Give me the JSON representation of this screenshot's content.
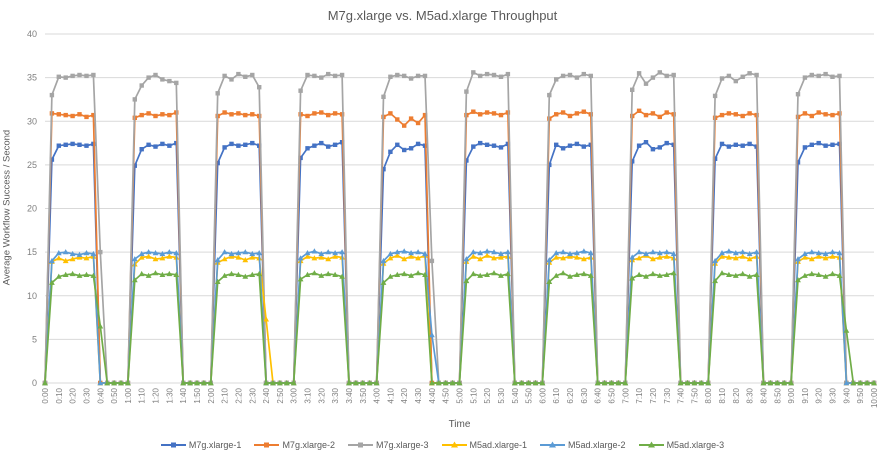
{
  "chart_data": {
    "type": "line",
    "title": "M7g.xlarge vs. M5ad.xlarge Throughput",
    "xlabel": "Time",
    "ylabel": "Average Workflow Success / Second",
    "ylim": [
      0,
      40
    ],
    "ytick_step": 5,
    "grid": true,
    "legend_position": "bottom",
    "x_tick_every_n_points": 2,
    "colors": {
      "gridline": "#d9d9d9",
      "axis_text": "#7f7f7f",
      "title_text": "#595959"
    },
    "x": [
      "0:00",
      "0:05",
      "0:10",
      "0:15",
      "0:20",
      "0:25",
      "0:30",
      "0:35",
      "0:40",
      "0:45",
      "0:50",
      "0:55",
      "1:00",
      "1:05",
      "1:10",
      "1:15",
      "1:20",
      "1:25",
      "1:30",
      "1:35",
      "1:40",
      "1:45",
      "1:50",
      "1:55",
      "2:00",
      "2:05",
      "2:10",
      "2:15",
      "2:20",
      "2:25",
      "2:30",
      "2:35",
      "2:40",
      "2:45",
      "2:50",
      "2:55",
      "3:00",
      "3:05",
      "3:10",
      "3:15",
      "3:20",
      "3:25",
      "3:30",
      "3:35",
      "3:40",
      "3:45",
      "3:50",
      "3:55",
      "4:00",
      "4:05",
      "4:10",
      "4:15",
      "4:20",
      "4:25",
      "4:30",
      "4:35",
      "4:40",
      "4:45",
      "4:50",
      "4:55",
      "5:00",
      "5:05",
      "5:10",
      "5:15",
      "5:20",
      "5:25",
      "5:30",
      "5:35",
      "5:40",
      "5:45",
      "5:50",
      "5:55",
      "6:00",
      "6:05",
      "6:10",
      "6:15",
      "6:20",
      "6:25",
      "6:30",
      "6:35",
      "6:40",
      "6:45",
      "6:50",
      "6:55",
      "7:00",
      "7:05",
      "7:10",
      "7:15",
      "7:20",
      "7:25",
      "7:30",
      "7:35",
      "7:40",
      "7:45",
      "7:50",
      "7:55",
      "8:00",
      "8:05",
      "8:10",
      "8:15",
      "8:20",
      "8:25",
      "8:30",
      "8:35",
      "8:40",
      "8:45",
      "8:50",
      "8:55",
      "9:00",
      "9:05",
      "9:10",
      "9:15",
      "9:20",
      "9:25",
      "9:30",
      "9:35",
      "9:40",
      "9:45",
      "9:50",
      "9:55",
      "10:00"
    ],
    "series": [
      {
        "name": "M7g.xlarge-1",
        "color": "#4472C4",
        "marker": "square",
        "values": [
          0,
          25.6,
          27.2,
          27.3,
          27.4,
          27.3,
          27.2,
          27.4,
          0,
          0,
          0,
          0,
          0,
          24.9,
          26.8,
          27.3,
          27.1,
          27.4,
          27.2,
          27.5,
          0,
          0,
          0,
          0,
          0,
          25.2,
          27.0,
          27.4,
          27.2,
          27.3,
          27.5,
          27.2,
          0,
          0,
          0,
          0,
          0,
          25.8,
          26.9,
          27.2,
          27.5,
          27.1,
          27.3,
          27.6,
          0,
          0,
          0,
          0,
          0,
          24.5,
          26.5,
          27.3,
          26.7,
          26.9,
          27.4,
          27.2,
          0,
          0,
          0,
          0,
          0,
          25.5,
          27.1,
          27.5,
          27.3,
          27.2,
          27.0,
          27.4,
          0,
          0,
          0,
          0,
          0,
          25.0,
          27.3,
          26.9,
          27.2,
          27.4,
          27.1,
          27.3,
          0,
          0,
          0,
          0,
          0,
          25.4,
          27.2,
          27.6,
          26.8,
          27.0,
          27.5,
          27.3,
          0,
          0,
          0,
          0,
          0,
          25.7,
          27.4,
          27.1,
          27.3,
          27.2,
          27.4,
          27.1,
          0,
          0,
          0,
          0,
          0,
          25.3,
          27.0,
          27.3,
          27.5,
          27.2,
          27.3,
          27.4,
          0,
          0,
          0,
          0,
          0
        ]
      },
      {
        "name": "M7g.xlarge-2",
        "color": "#ED7D31",
        "marker": "square",
        "values": [
          0,
          30.9,
          30.8,
          30.7,
          30.6,
          30.8,
          30.5,
          30.7,
          0,
          0,
          0,
          0,
          0,
          30.4,
          30.7,
          30.9,
          30.6,
          30.8,
          30.7,
          31.0,
          0,
          0,
          0,
          0,
          0,
          30.6,
          31.0,
          30.8,
          30.9,
          30.7,
          30.8,
          30.6,
          0,
          0,
          0,
          0,
          0,
          30.8,
          30.6,
          30.9,
          31.0,
          30.7,
          30.9,
          30.8,
          0,
          0,
          0,
          0,
          0,
          30.5,
          30.9,
          30.2,
          29.5,
          30.3,
          29.8,
          30.7,
          0,
          0,
          0,
          0,
          0,
          30.7,
          31.1,
          30.8,
          31.0,
          30.9,
          30.7,
          31.0,
          0,
          0,
          0,
          0,
          0,
          30.3,
          30.8,
          31.0,
          30.6,
          30.9,
          31.1,
          30.8,
          0,
          0,
          0,
          0,
          0,
          30.6,
          31.2,
          30.7,
          30.9,
          30.5,
          31.0,
          30.8,
          0,
          0,
          0,
          0,
          0,
          30.4,
          30.7,
          30.9,
          30.8,
          30.6,
          30.9,
          30.7,
          0,
          0,
          0,
          0,
          0,
          30.5,
          30.9,
          30.6,
          31.0,
          30.8,
          30.7,
          30.9,
          0,
          0,
          0,
          0,
          0
        ]
      },
      {
        "name": "M7g.xlarge-3",
        "color": "#A5A5A5",
        "marker": "square",
        "values": [
          0,
          33.0,
          35.1,
          35.0,
          35.2,
          35.3,
          35.2,
          35.3,
          15.0,
          0,
          0,
          0,
          0,
          32.5,
          34.1,
          35.0,
          35.3,
          34.8,
          34.6,
          34.4,
          0,
          0,
          0,
          0,
          0,
          33.2,
          35.2,
          34.8,
          35.4,
          35.1,
          35.3,
          33.9,
          0,
          0,
          0,
          0,
          0,
          33.5,
          35.3,
          35.2,
          35.0,
          35.4,
          35.2,
          35.3,
          0,
          0,
          0,
          0,
          0,
          32.8,
          35.1,
          35.3,
          35.2,
          34.9,
          35.2,
          35.2,
          14.0,
          0,
          0,
          0,
          0,
          33.4,
          35.6,
          35.2,
          35.4,
          35.3,
          35.1,
          35.4,
          0,
          0,
          0,
          0,
          0,
          33.0,
          34.8,
          35.2,
          35.3,
          35.0,
          35.4,
          35.2,
          0,
          0,
          0,
          0,
          0,
          33.6,
          35.5,
          34.3,
          35.0,
          35.6,
          35.2,
          35.3,
          0,
          0,
          0,
          0,
          0,
          32.9,
          34.9,
          35.2,
          34.6,
          35.1,
          35.5,
          35.3,
          0,
          0,
          0,
          0,
          0,
          33.1,
          35.0,
          35.3,
          35.2,
          35.4,
          35.1,
          35.2,
          0,
          0,
          0,
          0,
          0
        ]
      },
      {
        "name": "M5ad.xlarge-1",
        "color": "#FFC000",
        "marker": "triangle",
        "values": [
          0,
          13.9,
          14.3,
          14.0,
          14.2,
          14.4,
          14.3,
          14.5,
          0,
          0,
          0,
          0,
          0,
          13.6,
          14.4,
          14.5,
          14.2,
          14.3,
          14.5,
          14.4,
          0,
          0,
          0,
          0,
          0,
          13.8,
          14.2,
          14.5,
          14.4,
          14.1,
          14.4,
          14.3,
          7.3,
          0,
          0,
          0,
          0,
          14.0,
          14.5,
          14.3,
          14.4,
          14.2,
          14.5,
          14.4,
          0,
          0,
          0,
          0,
          0,
          13.7,
          14.3,
          14.6,
          14.2,
          14.5,
          14.3,
          14.6,
          0,
          0,
          0,
          0,
          0,
          13.9,
          14.5,
          14.2,
          14.6,
          14.3,
          14.4,
          14.5,
          0,
          0,
          0,
          0,
          0,
          13.8,
          14.4,
          14.3,
          14.5,
          14.4,
          14.2,
          14.4,
          0,
          0,
          0,
          0,
          0,
          14.1,
          14.3,
          14.6,
          14.2,
          14.4,
          14.5,
          14.3,
          0,
          0,
          0,
          0,
          0,
          13.7,
          14.5,
          14.4,
          14.3,
          14.5,
          14.2,
          14.5,
          0,
          0,
          0,
          0,
          0,
          13.9,
          14.4,
          14.2,
          14.5,
          14.3,
          14.5,
          14.4,
          0,
          0,
          0,
          0,
          0
        ]
      },
      {
        "name": "M5ad.xlarge-2",
        "color": "#5B9BD5",
        "marker": "triangle",
        "values": [
          0,
          14.0,
          14.9,
          15.0,
          14.8,
          14.7,
          14.9,
          14.8,
          0,
          0,
          0,
          0,
          0,
          14.2,
          14.8,
          15.0,
          14.9,
          14.8,
          15.0,
          14.9,
          0,
          0,
          0,
          0,
          0,
          14.1,
          15.0,
          14.8,
          14.9,
          15.0,
          14.8,
          14.9,
          0,
          0,
          0,
          0,
          0,
          14.3,
          14.9,
          15.1,
          14.8,
          15.0,
          14.9,
          15.0,
          0,
          0,
          0,
          0,
          0,
          14.0,
          14.8,
          15.0,
          15.1,
          14.9,
          15.0,
          14.8,
          5.5,
          0,
          0,
          0,
          0,
          14.2,
          15.0,
          14.9,
          15.1,
          15.0,
          14.8,
          15.0,
          0,
          0,
          0,
          0,
          0,
          14.1,
          14.9,
          15.0,
          14.8,
          14.9,
          15.1,
          14.9,
          0,
          0,
          0,
          0,
          0,
          14.4,
          15.0,
          14.8,
          15.0,
          14.9,
          15.0,
          14.8,
          0,
          0,
          0,
          0,
          0,
          14.0,
          14.9,
          15.1,
          14.9,
          15.0,
          14.8,
          15.0,
          0,
          0,
          0,
          0,
          0,
          14.2,
          14.8,
          15.0,
          14.9,
          14.8,
          15.0,
          14.9,
          0,
          0,
          0,
          0,
          0
        ]
      },
      {
        "name": "M5ad.xlarge-3",
        "color": "#70AD47",
        "marker": "triangle",
        "values": [
          0,
          11.5,
          12.2,
          12.4,
          12.5,
          12.3,
          12.4,
          12.3,
          6.5,
          0,
          0,
          0,
          0,
          11.8,
          12.5,
          12.3,
          12.6,
          12.4,
          12.5,
          12.4,
          0,
          0,
          0,
          0,
          0,
          11.6,
          12.3,
          12.5,
          12.4,
          12.2,
          12.4,
          12.5,
          0,
          0,
          0,
          0,
          0,
          11.9,
          12.4,
          12.6,
          12.3,
          12.5,
          12.4,
          12.2,
          0,
          0,
          0,
          0,
          0,
          11.5,
          12.2,
          12.4,
          12.5,
          12.3,
          12.6,
          12.4,
          0,
          0,
          0,
          0,
          0,
          11.7,
          12.5,
          12.3,
          12.4,
          12.6,
          12.3,
          12.5,
          0,
          0,
          0,
          0,
          0,
          11.6,
          12.3,
          12.6,
          12.2,
          12.4,
          12.5,
          12.3,
          0,
          0,
          0,
          0,
          0,
          12.0,
          12.4,
          12.2,
          12.5,
          12.3,
          12.4,
          12.6,
          0,
          0,
          0,
          0,
          0,
          11.7,
          12.6,
          12.4,
          12.3,
          12.5,
          12.2,
          12.4,
          0,
          0,
          0,
          0,
          0,
          11.8,
          12.3,
          12.5,
          12.4,
          12.2,
          12.5,
          12.3,
          6.0,
          0,
          0,
          0,
          0
        ]
      }
    ]
  }
}
